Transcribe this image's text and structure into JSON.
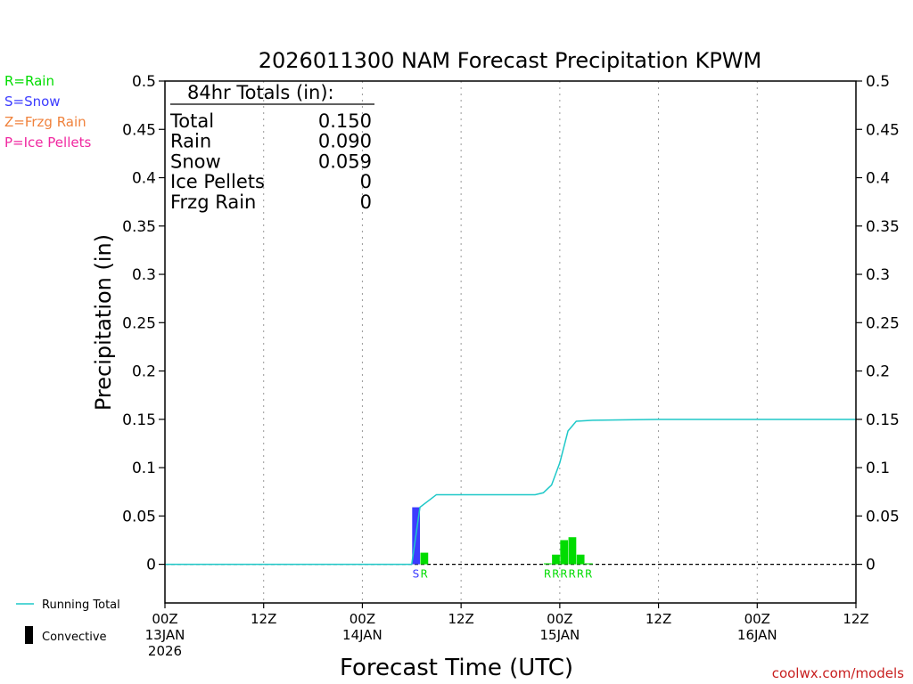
{
  "chart_data": {
    "type": "bar",
    "title": "2026011300 NAM Forecast Precipitation KPWM",
    "xlabel": "Forecast Time (UTC)",
    "ylabel": "Precipitation (in)",
    "ylim": [
      -0.04,
      0.5
    ],
    "y_ticks": [
      0,
      0.05,
      0.1,
      0.15,
      0.2,
      0.25,
      0.3,
      0.35,
      0.4,
      0.45,
      0.5
    ],
    "y_tick_labels": [
      "0",
      "0.05",
      "0.1",
      "0.15",
      "0.2",
      "0.25",
      "0.3",
      "0.35",
      "0.4",
      "0.45",
      "0.5"
    ],
    "x_unit": "forecast hour",
    "xlim": [
      0,
      84
    ],
    "x_ticks": [
      {
        "hour": 0,
        "lines": [
          "00Z",
          "13JAN",
          "2026"
        ]
      },
      {
        "hour": 12,
        "lines": [
          "12Z"
        ]
      },
      {
        "hour": 24,
        "lines": [
          "00Z",
          "14JAN"
        ]
      },
      {
        "hour": 36,
        "lines": [
          "12Z"
        ]
      },
      {
        "hour": 48,
        "lines": [
          "00Z",
          "15JAN"
        ]
      },
      {
        "hour": 60,
        "lines": [
          "12Z"
        ]
      },
      {
        "hour": 72,
        "lines": [
          "00Z",
          "16JAN"
        ]
      },
      {
        "hour": 84,
        "lines": [
          "12Z"
        ]
      }
    ],
    "grid": "vertical dotted at 12h",
    "bars": [
      {
        "hour": 31,
        "value": 0.059,
        "type": "S"
      },
      {
        "hour": 32,
        "value": 0.012,
        "type": "R"
      },
      {
        "hour": 47,
        "value": 0.001,
        "type": "R"
      },
      {
        "hour": 48,
        "value": 0.01,
        "type": "R"
      },
      {
        "hour": 49,
        "value": 0.025,
        "type": "R"
      },
      {
        "hour": 50,
        "value": 0.028,
        "type": "R"
      },
      {
        "hour": 51,
        "value": 0.01,
        "type": "R"
      },
      {
        "hour": 52,
        "value": 0.001,
        "type": "R"
      }
    ],
    "running_total": {
      "name": "Running Total",
      "points": [
        [
          0,
          0
        ],
        [
          30,
          0
        ],
        [
          31,
          0.059
        ],
        [
          33,
          0.072
        ],
        [
          45,
          0.072
        ],
        [
          46,
          0.074
        ],
        [
          47,
          0.082
        ],
        [
          48,
          0.105
        ],
        [
          49,
          0.138
        ],
        [
          50,
          0.148
        ],
        [
          52,
          0.149
        ],
        [
          60,
          0.15
        ],
        [
          84,
          0.15
        ]
      ]
    },
    "type_colors": {
      "R": "#00dc00",
      "S": "#3c3cff",
      "Z": "#f0823c",
      "P": "#f028a0"
    },
    "line_color": "#1ec8c8",
    "type_legend": [
      {
        "code": "R",
        "label": "R=Rain"
      },
      {
        "code": "S",
        "label": "S=Snow"
      },
      {
        "code": "Z",
        "label": "Z=Frzg Rain"
      },
      {
        "code": "P",
        "label": "P=Ice Pellets"
      }
    ],
    "totals_box": {
      "heading": "84hr Totals (in):",
      "rows": [
        {
          "label": "Total",
          "value": "0.150"
        },
        {
          "label": "Rain",
          "value": "0.090"
        },
        {
          "label": "Snow",
          "value": "0.059"
        },
        {
          "label": "Ice Pellets",
          "value": "0"
        },
        {
          "label": "Frzg Rain",
          "value": "0"
        }
      ]
    },
    "bottom_legend": {
      "running_total_label": "Running Total",
      "convective_label": "Convective"
    },
    "credit": "coolwx.com/models"
  }
}
